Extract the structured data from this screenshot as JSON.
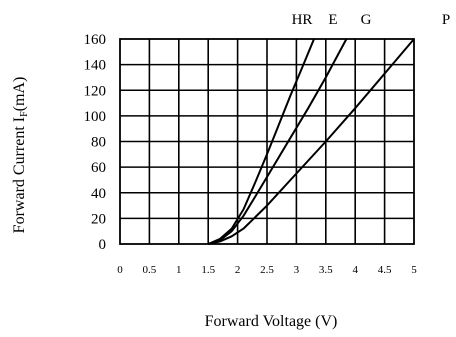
{
  "chart_data": {
    "type": "line",
    "title": "",
    "xlabel": "Forward Voltage (V)",
    "ylabel_main": "Forward Current I",
    "ylabel_sub": "F",
    "ylabel_unit": "(mA)",
    "xlim": [
      0,
      5
    ],
    "ylim": [
      0,
      160
    ],
    "x_ticks": [
      "0",
      "0.5",
      "1",
      "1.5",
      "2",
      "2.5",
      "3",
      "3.5",
      "4",
      "4.5",
      "5"
    ],
    "y_ticks": [
      "0",
      "20",
      "40",
      "60",
      "80",
      "100",
      "120",
      "140",
      "160"
    ],
    "grid": true,
    "series": [
      {
        "name": "HR",
        "x": [
          1.5,
          1.7,
          1.9,
          2.1,
          2.3,
          2.5,
          2.7,
          2.9,
          3.1,
          3.3
        ],
        "y": [
          0,
          4,
          12,
          27,
          48,
          70,
          93,
          116,
          138,
          160
        ]
      },
      {
        "name": "E",
        "x": [
          1.5,
          1.7,
          1.9,
          2.1,
          2.3,
          2.6,
          2.9,
          3.2,
          3.5,
          3.85
        ],
        "y": [
          0,
          3,
          10,
          22,
          37,
          60,
          83,
          106,
          130,
          160
        ]
      },
      {
        "name": "G",
        "x": [
          1.5,
          1.7,
          1.9,
          2.1,
          2.5,
          3.0,
          3.5,
          4.0,
          4.5,
          5.0
        ],
        "y": [
          0,
          2,
          6,
          12,
          30,
          55,
          80,
          106,
          133,
          160
        ]
      }
    ],
    "extra_labels": [
      "P"
    ]
  }
}
